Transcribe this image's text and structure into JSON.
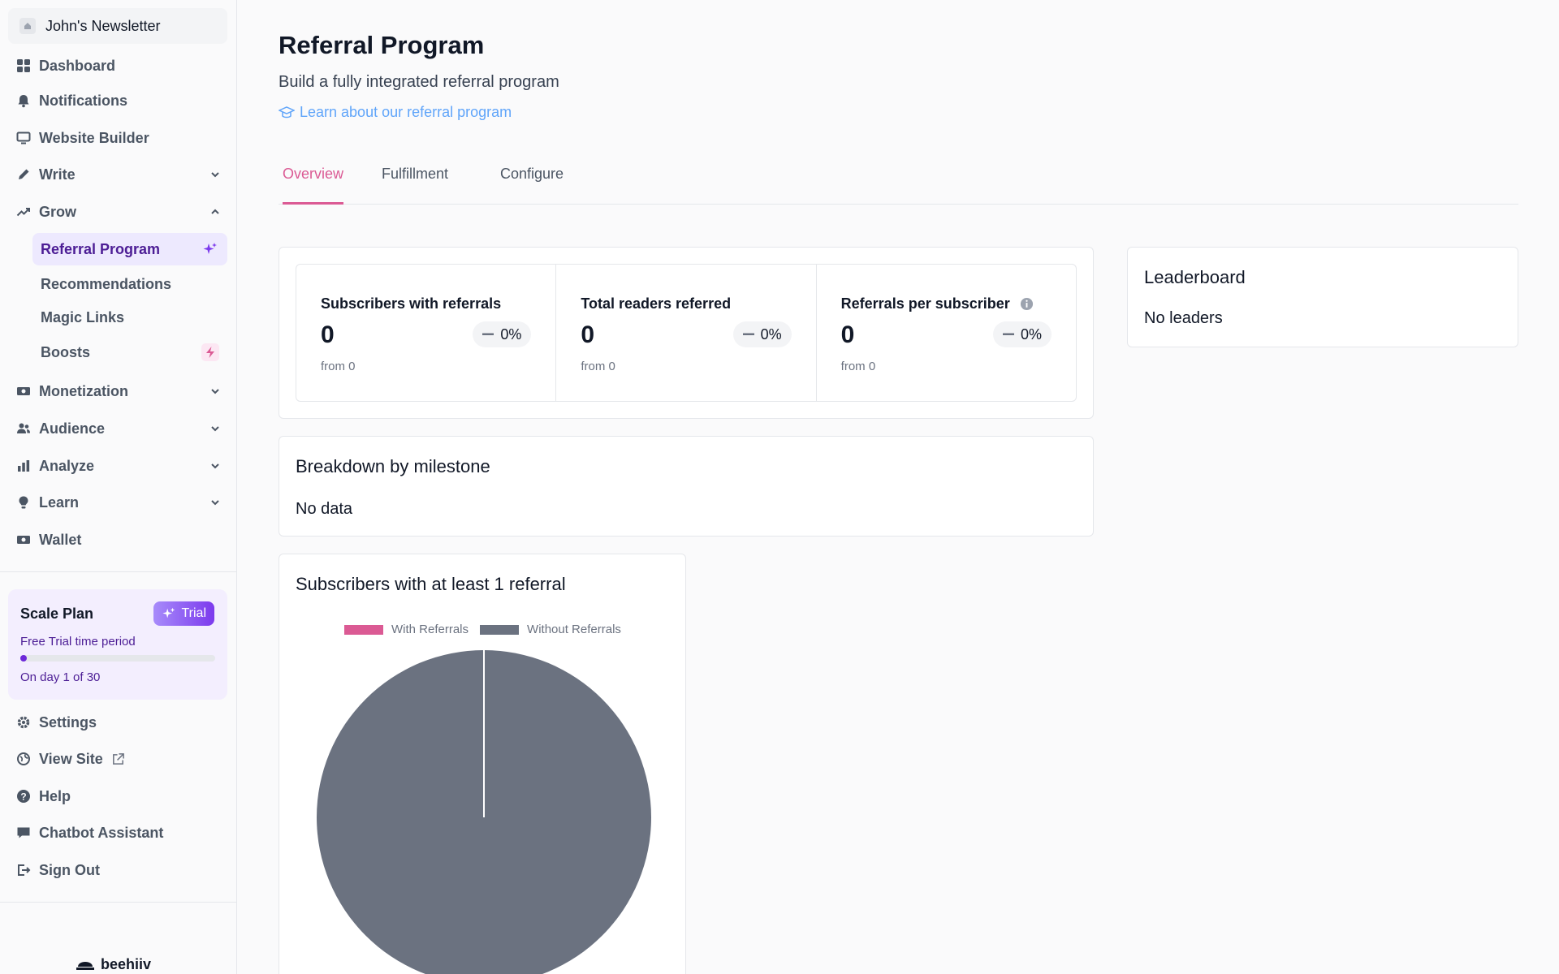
{
  "sidebar": {
    "publication": "John's Newsletter",
    "items": {
      "dashboard": "Dashboard",
      "notifications": "Notifications",
      "website_builder": "Website Builder",
      "write": "Write",
      "grow": "Grow",
      "monetization": "Monetization",
      "audience": "Audience",
      "analyze": "Analyze",
      "learn": "Learn",
      "wallet": "Wallet"
    },
    "grow_sub": {
      "referral_program": "Referral Program",
      "recommendations": "Recommendations",
      "magic_links": "Magic Links",
      "boosts": "Boosts"
    },
    "plan": {
      "title": "Scale Plan",
      "badge": "Trial",
      "desc": "Free Trial time period",
      "progress": 0.0333,
      "day": "On day 1 of 30"
    },
    "bottom": {
      "settings": "Settings",
      "view_site": "View Site",
      "help": "Help",
      "chatbot": "Chatbot Assistant",
      "sign_out": "Sign Out"
    },
    "brand": "beehiiv"
  },
  "main": {
    "title": "Referral Program",
    "subtitle": "Build a fully integrated referral program",
    "learn_link": "Learn about our referral program",
    "tabs": [
      "Overview",
      "Fulfillment",
      "Configure"
    ],
    "stats": [
      {
        "label": "Subscribers with referrals",
        "value": "0",
        "change": "0%",
        "from": "from 0"
      },
      {
        "label": "Total readers referred",
        "value": "0",
        "change": "0%",
        "from": "from 0"
      },
      {
        "label": "Referrals per subscriber",
        "value": "0",
        "change": "0%",
        "from": "from 0"
      }
    ],
    "milestone": {
      "title": "Breakdown by milestone",
      "body": "No data"
    },
    "leaderboard": {
      "title": "Leaderboard",
      "body": "No leaders"
    }
  },
  "chart_data": {
    "type": "pie",
    "title": "Subscribers with at least 1 referral",
    "categories": [
      "With Referrals",
      "Without Referrals"
    ],
    "values": [
      0,
      1
    ],
    "colors": [
      "#db5a94",
      "#6b7280"
    ],
    "legend": "top"
  }
}
